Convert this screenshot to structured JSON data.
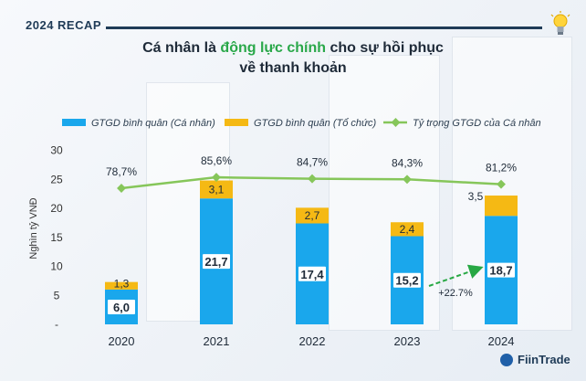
{
  "header": {
    "title": "2024 RECAP"
  },
  "title": {
    "prefix": "Cá nhân là ",
    "highlight": "động lực chính",
    "suffix": " cho sự hồi phục",
    "line2": "về thanh khoản"
  },
  "brand": {
    "name": "FiinTrade"
  },
  "colors": {
    "individual": "#1aa7ec",
    "institutional": "#f5b914",
    "share": "#86c65a",
    "growth": "#27a844"
  },
  "chart_data": {
    "type": "bar",
    "stacked": true,
    "categories": [
      "2020",
      "2021",
      "2022",
      "2023",
      "2024"
    ],
    "series": [
      {
        "name": "GTGD bình quân (Cá nhân)",
        "values": [
          6.0,
          21.7,
          17.4,
          15.2,
          18.7
        ],
        "labels": [
          "6,0",
          "21,7",
          "17,4",
          "15,2",
          "18,7"
        ]
      },
      {
        "name": "GTGD bình quân (Tổ chức)",
        "values": [
          1.3,
          3.1,
          2.7,
          2.4,
          3.5
        ],
        "labels": [
          "1,3",
          "3,1",
          "2,7",
          "2,4",
          "3,5"
        ]
      }
    ],
    "line_series": {
      "name": "Tỷ trọng GTGD của Cá nhân",
      "values": [
        78.7,
        85.6,
        84.7,
        84.3,
        81.2
      ],
      "labels": [
        "78,7%",
        "85,6%",
        "84,7%",
        "84,3%",
        "81,2%"
      ]
    },
    "ylabel": "Nghìn tỷ VNĐ",
    "ylim": [
      0,
      30
    ],
    "yticks": [
      "-",
      "5",
      "10",
      "15",
      "20",
      "25",
      "30"
    ],
    "annotation": "+22.7%",
    "legend_position": "top"
  }
}
